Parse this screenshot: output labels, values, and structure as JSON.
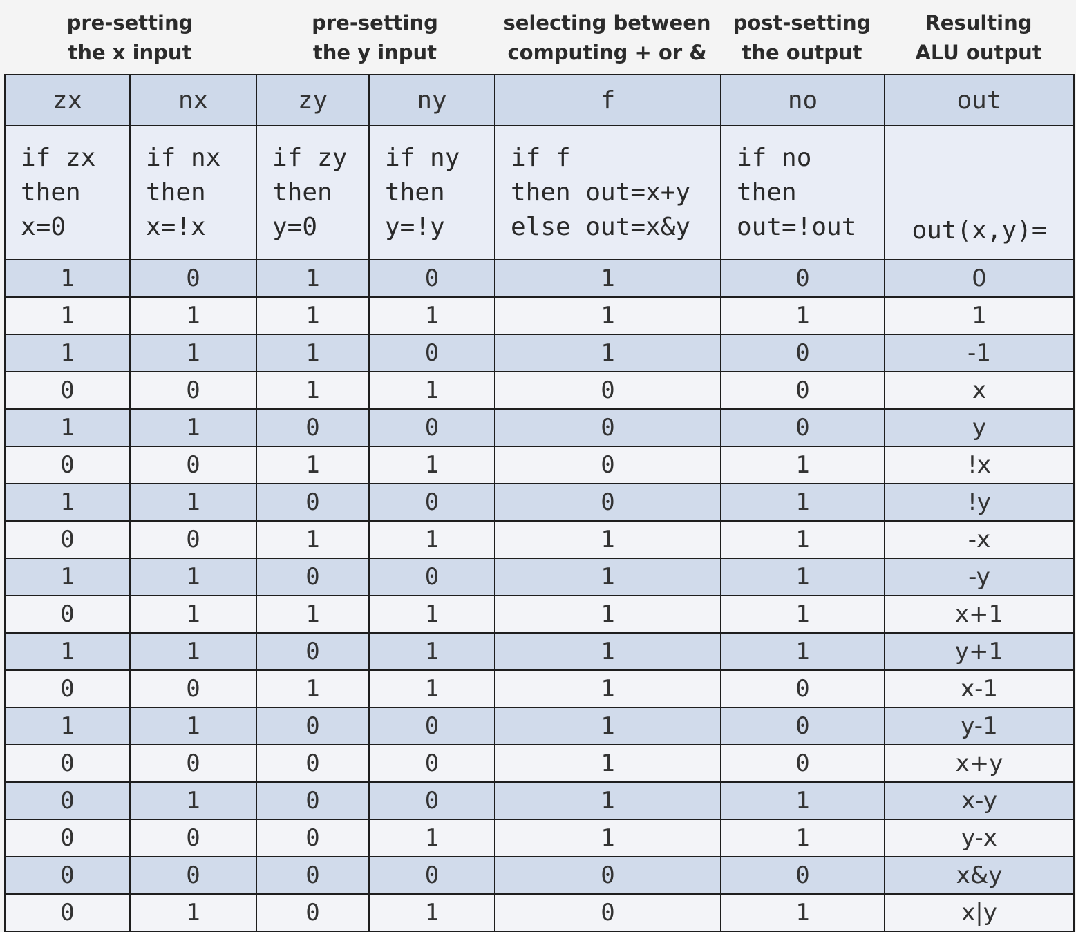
{
  "groups": [
    {
      "label": "pre-setting\nthe x input"
    },
    {
      "label": "pre-setting\nthe y input"
    },
    {
      "label": "selecting between\ncomputing + or &"
    },
    {
      "label": "post-setting\nthe output"
    },
    {
      "label": "Resulting\nALU output"
    }
  ],
  "columns": [
    {
      "name": "zx",
      "desc": "if zx\nthen\nx=0"
    },
    {
      "name": "nx",
      "desc": "if nx\nthen\nx=!x"
    },
    {
      "name": "zy",
      "desc": "if zy\nthen\ny=0"
    },
    {
      "name": "ny",
      "desc": "if ny\nthen\ny=!y"
    },
    {
      "name": "f",
      "desc": "if f\nthen out=x+y\nelse out=x&y"
    },
    {
      "name": "no",
      "desc": "if no\nthen\nout=!out"
    },
    {
      "name": "out",
      "desc": "out(x,y)="
    }
  ],
  "rows": [
    [
      "1",
      "0",
      "1",
      "0",
      "1",
      "0",
      "0"
    ],
    [
      "1",
      "1",
      "1",
      "1",
      "1",
      "1",
      "1"
    ],
    [
      "1",
      "1",
      "1",
      "0",
      "1",
      "0",
      "-1"
    ],
    [
      "0",
      "0",
      "1",
      "1",
      "0",
      "0",
      "x"
    ],
    [
      "1",
      "1",
      "0",
      "0",
      "0",
      "0",
      "y"
    ],
    [
      "0",
      "0",
      "1",
      "1",
      "0",
      "1",
      "!x"
    ],
    [
      "1",
      "1",
      "0",
      "0",
      "0",
      "1",
      "!y"
    ],
    [
      "0",
      "0",
      "1",
      "1",
      "1",
      "1",
      "-x"
    ],
    [
      "1",
      "1",
      "0",
      "0",
      "1",
      "1",
      "-y"
    ],
    [
      "0",
      "1",
      "1",
      "1",
      "1",
      "1",
      "x+1"
    ],
    [
      "1",
      "1",
      "0",
      "1",
      "1",
      "1",
      "y+1"
    ],
    [
      "0",
      "0",
      "1",
      "1",
      "1",
      "0",
      "x-1"
    ],
    [
      "1",
      "1",
      "0",
      "0",
      "1",
      "0",
      "y-1"
    ],
    [
      "0",
      "0",
      "0",
      "0",
      "1",
      "0",
      "x+y"
    ],
    [
      "0",
      "1",
      "0",
      "0",
      "1",
      "1",
      "x-y"
    ],
    [
      "0",
      "0",
      "0",
      "1",
      "1",
      "1",
      "y-x"
    ],
    [
      "0",
      "0",
      "0",
      "0",
      "0",
      "0",
      "x&y"
    ],
    [
      "0",
      "1",
      "0",
      "1",
      "0",
      "1",
      "x|y"
    ]
  ]
}
